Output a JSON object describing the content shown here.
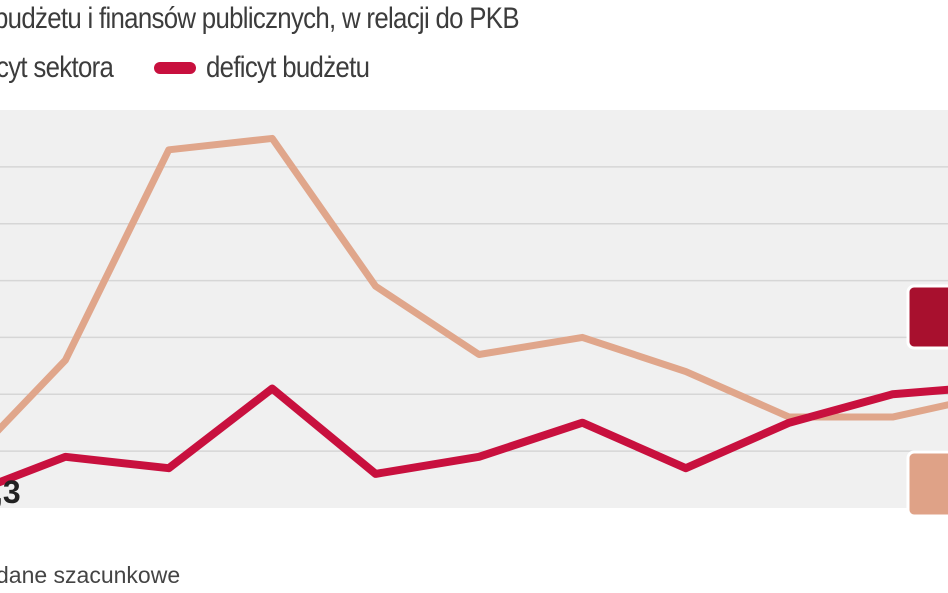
{
  "title": "budżetu i finansów publicznych, w relacji do PKB",
  "footnote": "dane szacunkowe",
  "chart_data": {
    "type": "line",
    "title": "budżetu i finansów publicznych, w relacji do PKB",
    "legend_placement": "top-left",
    "grid": true,
    "ylim": [
      0,
      7
    ],
    "x": [
      0,
      1,
      2,
      3,
      4,
      5,
      6,
      7,
      8,
      9,
      10
    ],
    "series": [
      {
        "name": "cyt sektora",
        "color": "#e0a68b",
        "values": [
          0.7,
          2.6,
          6.3,
          6.5,
          3.9,
          2.7,
          3.0,
          2.4,
          1.6,
          1.6,
          2.0
        ]
      },
      {
        "name": "deficyt budżetu",
        "color": "#c8103e",
        "values": [
          0.2,
          0.9,
          0.7,
          2.1,
          0.6,
          0.9,
          1.5,
          0.7,
          1.5,
          2.0,
          2.15
        ]
      }
    ],
    "annotations": [
      ",3"
    ],
    "label_boxes": [
      {
        "color": "#a8102e"
      },
      {
        "color": "#dfa287"
      }
    ]
  }
}
